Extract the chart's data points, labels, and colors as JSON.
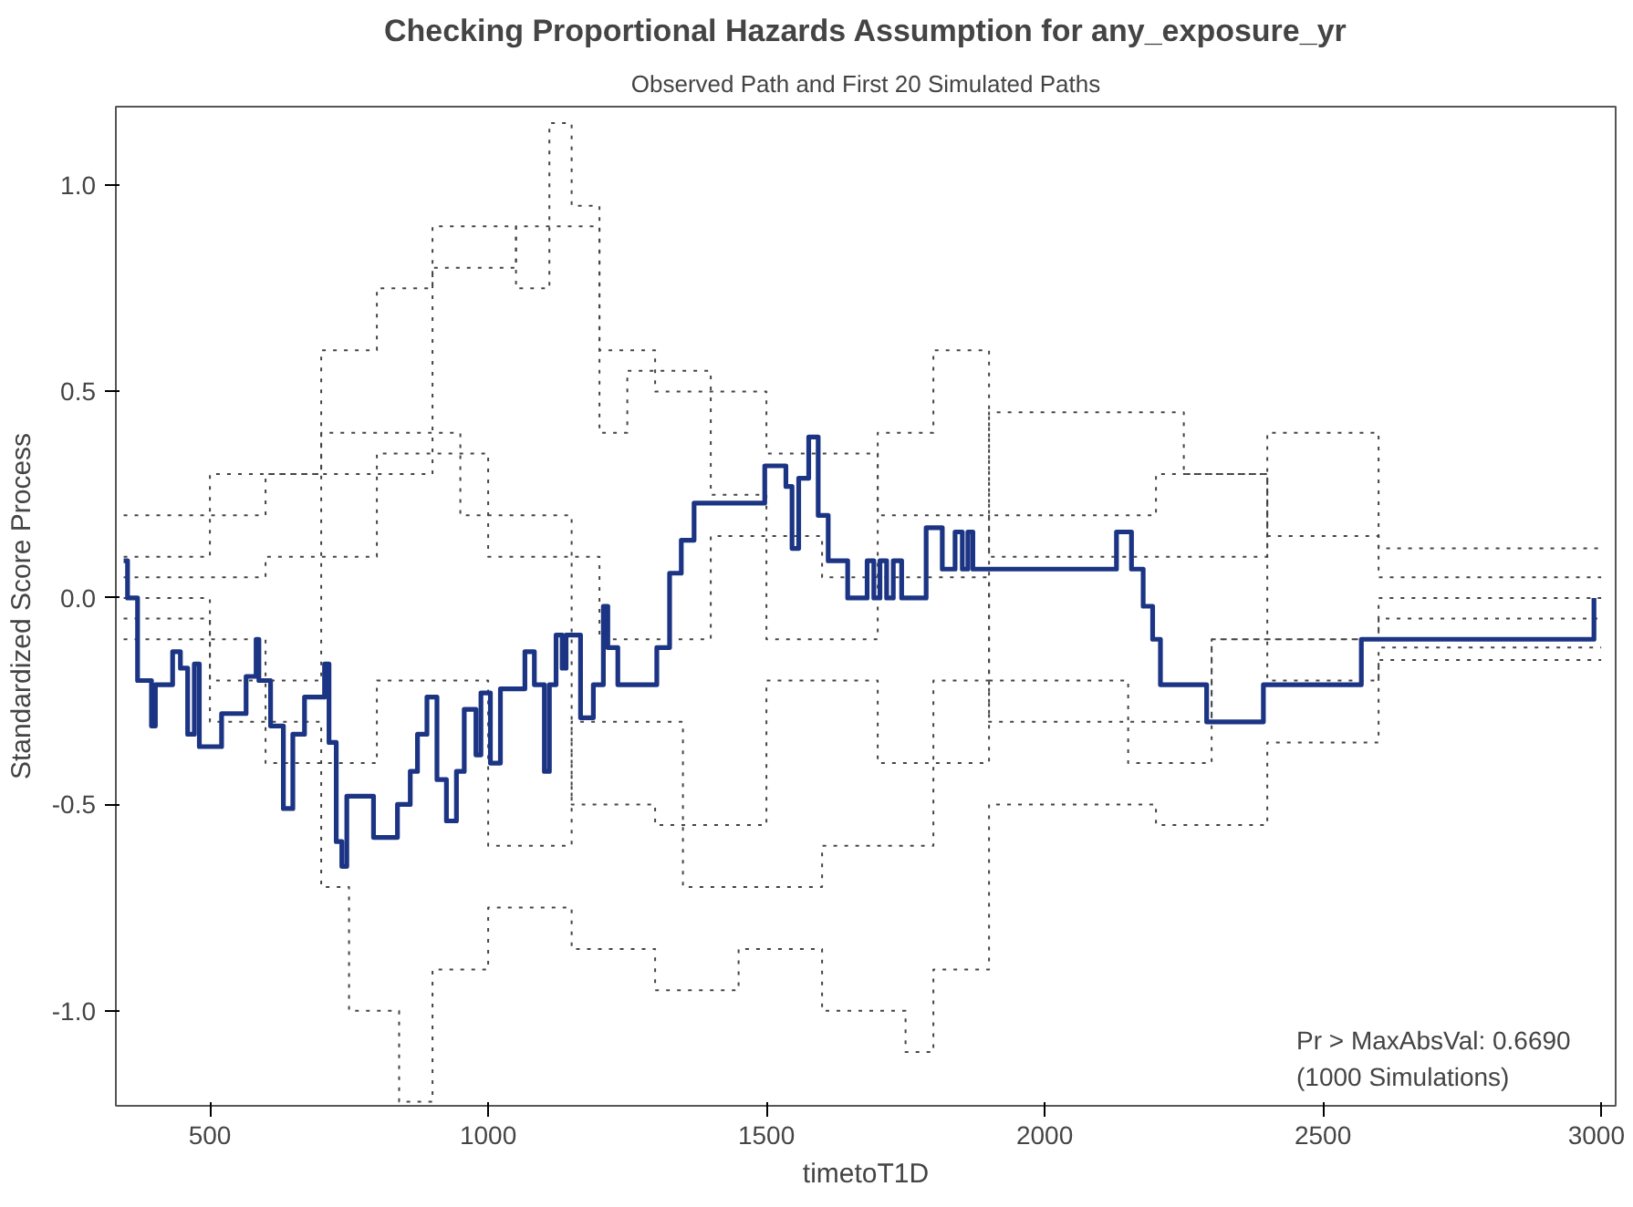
{
  "chart_data": {
    "type": "step",
    "title": "Checking Proportional Hazards Assumption for any_exposure_yr",
    "subtitle": "Observed Path and First 20 Simulated Paths",
    "xlabel": "timetoT1D",
    "ylabel": "Standardized Score Process",
    "xlim": [
      331,
      3026
    ],
    "ylim": [
      -1.23,
      1.19
    ],
    "xticks": [
      500,
      1000,
      1500,
      2000,
      2500,
      3000
    ],
    "yticks": [
      {
        "value": 1.0,
        "label": "1.0"
      },
      {
        "value": 0.5,
        "label": "0.5"
      },
      {
        "value": 0.0,
        "label": "0.0"
      },
      {
        "value": -0.5,
        "label": "-0.5"
      },
      {
        "value": -1.0,
        "label": "-1.0"
      }
    ],
    "grid": false,
    "annotations": [
      "Pr > MaxAbsVal: 0.6690",
      "(1000 Simulations)"
    ],
    "series": [
      {
        "color": "#444444",
        "line_style": "dotted",
        "x": [
          345,
          500,
          700,
          800,
          900,
          1050,
          1110,
          1150,
          1200,
          1300,
          1500,
          1700,
          1900,
          2200,
          2250,
          2400,
          2600,
          3000
        ],
        "values": [
          0.1,
          0.3,
          0.6,
          0.75,
          0.9,
          0.75,
          1.15,
          0.95,
          0.6,
          0.5,
          0.35,
          0.2,
          0.45,
          0.45,
          0.3,
          0.15,
          0.05,
          0.05
        ]
      },
      {
        "color": "#444444",
        "line_style": "dotted",
        "x": [
          345,
          500,
          700,
          750,
          840,
          900,
          1000,
          1150,
          1300,
          1450,
          1600,
          1750,
          1800,
          1900,
          2200,
          2400,
          2600,
          3000
        ],
        "values": [
          -0.05,
          -0.3,
          -0.7,
          -1.0,
          -1.22,
          -0.9,
          -0.75,
          -0.85,
          -0.95,
          -0.85,
          -1.0,
          -1.1,
          -0.9,
          -0.5,
          -0.55,
          -0.35,
          -0.15,
          -0.15
        ]
      },
      {
        "color": "#444444",
        "line_style": "dotted",
        "x": [
          345,
          600,
          900,
          1050,
          1200,
          1250,
          1400,
          1500,
          1700,
          1800,
          1900,
          2250,
          2400,
          2600,
          3000
        ],
        "values": [
          0.2,
          0.3,
          0.8,
          0.9,
          0.4,
          0.55,
          0.25,
          -0.1,
          0.4,
          0.6,
          0.1,
          0.1,
          0.4,
          0.12,
          0.12
        ]
      },
      {
        "color": "#444444",
        "line_style": "dotted",
        "x": [
          345,
          600,
          800,
          1000,
          1150,
          1350,
          1600,
          1800,
          1900,
          2200,
          2300,
          2600,
          3000
        ],
        "values": [
          -0.1,
          -0.4,
          -0.2,
          -0.6,
          -0.3,
          -0.7,
          -0.6,
          -0.2,
          -0.3,
          -0.3,
          -0.1,
          0.0,
          0.0
        ]
      },
      {
        "color": "#444444",
        "line_style": "dotted",
        "x": [
          345,
          600,
          800,
          1000,
          1200,
          1400,
          1600,
          1900,
          2150,
          2300,
          2600,
          3000
        ],
        "values": [
          0.05,
          0.1,
          0.35,
          0.1,
          -0.1,
          0.15,
          0.05,
          -0.2,
          -0.4,
          -0.1,
          -0.05,
          -0.05
        ]
      },
      {
        "color": "#444444",
        "line_style": "dotted",
        "x": [
          345,
          500,
          700,
          950,
          1150,
          1300,
          1500,
          1700,
          1900,
          2200,
          2400,
          2600,
          3000
        ],
        "values": [
          0.0,
          -0.2,
          0.4,
          0.2,
          -0.5,
          -0.55,
          -0.2,
          -0.4,
          0.2,
          0.3,
          -0.2,
          -0.12,
          -0.12
        ]
      },
      {
        "color": "#1c3484",
        "line_style": "solid",
        "x": [
          345,
          352,
          370,
          395,
          402,
          433,
          447,
          460,
          472,
          481,
          521,
          565,
          583,
          588,
          609,
          632,
          649,
          670,
          706,
          714,
          727,
          737,
          746,
          794,
          837,
          860,
          873,
          890,
          908,
          925,
          943,
          957,
          978,
          987,
          1004,
          1022,
          1066,
          1083,
          1101,
          1110,
          1122,
          1133,
          1140,
          1166,
          1189,
          1207,
          1215,
          1233,
          1303,
          1326,
          1347,
          1370,
          1497,
          1535,
          1546,
          1558,
          1576,
          1593,
          1611,
          1646,
          1681,
          1693,
          1704,
          1716,
          1728,
          1743,
          1787,
          1816,
          1839,
          1852,
          1862,
          1871,
          2129,
          2156,
          2177,
          2194,
          2208,
          2291,
          2393,
          2569,
          2987
        ],
        "values": [
          0.09,
          0.0,
          -0.2,
          -0.31,
          -0.21,
          -0.13,
          -0.17,
          -0.33,
          -0.16,
          -0.36,
          -0.28,
          -0.19,
          -0.1,
          -0.2,
          -0.31,
          -0.51,
          -0.33,
          -0.24,
          -0.16,
          -0.35,
          -0.59,
          -0.65,
          -0.48,
          -0.58,
          -0.5,
          -0.42,
          -0.33,
          -0.24,
          -0.44,
          -0.54,
          -0.42,
          -0.27,
          -0.38,
          -0.23,
          -0.4,
          -0.22,
          -0.13,
          -0.21,
          -0.42,
          -0.21,
          -0.09,
          -0.17,
          -0.09,
          -0.29,
          -0.21,
          -0.02,
          -0.12,
          -0.21,
          -0.12,
          0.06,
          0.14,
          0.23,
          0.32,
          0.27,
          0.12,
          0.29,
          0.39,
          0.2,
          0.09,
          0.0,
          0.09,
          0.0,
          0.09,
          0.0,
          0.09,
          0.0,
          0.17,
          0.07,
          0.16,
          0.07,
          0.16,
          0.07,
          0.16,
          0.07,
          -0.02,
          -0.1,
          -0.21,
          -0.3,
          -0.21,
          -0.1,
          0.0
        ]
      }
    ]
  }
}
